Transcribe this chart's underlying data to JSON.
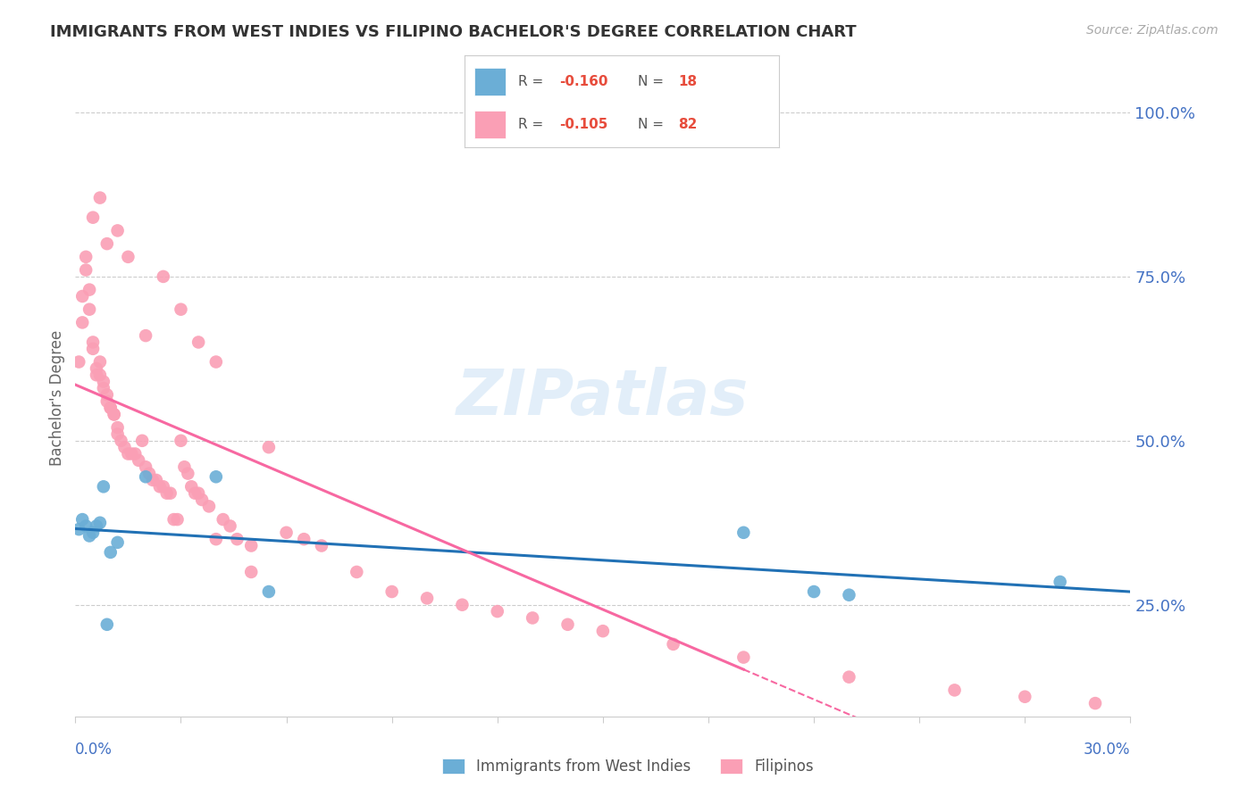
{
  "title": "IMMIGRANTS FROM WEST INDIES VS FILIPINO BACHELOR'S DEGREE CORRELATION CHART",
  "source": "Source: ZipAtlas.com",
  "ylabel": "Bachelor's Degree",
  "legend_label_blue": "Immigrants from West Indies",
  "legend_label_pink": "Filipinos",
  "xmin": 0.0,
  "xmax": 0.3,
  "ymin": 0.08,
  "ymax": 1.05,
  "blue_color": "#6baed6",
  "pink_color": "#fa9fb5",
  "trendline_blue_color": "#2171b5",
  "trendline_pink_color": "#f768a1",
  "blue_scatter_x": [
    0.001,
    0.002,
    0.003,
    0.004,
    0.005,
    0.006,
    0.007,
    0.008,
    0.01,
    0.012,
    0.02,
    0.04,
    0.055,
    0.19,
    0.21,
    0.22,
    0.28,
    0.009
  ],
  "blue_scatter_y": [
    0.365,
    0.38,
    0.37,
    0.355,
    0.36,
    0.37,
    0.375,
    0.43,
    0.33,
    0.345,
    0.445,
    0.445,
    0.27,
    0.36,
    0.27,
    0.265,
    0.285,
    0.22
  ],
  "pink_scatter_x": [
    0.001,
    0.002,
    0.002,
    0.003,
    0.003,
    0.004,
    0.004,
    0.005,
    0.005,
    0.006,
    0.006,
    0.007,
    0.007,
    0.008,
    0.008,
    0.009,
    0.009,
    0.01,
    0.01,
    0.011,
    0.011,
    0.012,
    0.012,
    0.013,
    0.014,
    0.015,
    0.016,
    0.017,
    0.018,
    0.019,
    0.02,
    0.021,
    0.022,
    0.023,
    0.024,
    0.025,
    0.026,
    0.027,
    0.028,
    0.029,
    0.03,
    0.031,
    0.032,
    0.033,
    0.034,
    0.035,
    0.036,
    0.038,
    0.04,
    0.042,
    0.044,
    0.046,
    0.05,
    0.055,
    0.06,
    0.07,
    0.08,
    0.09,
    0.1,
    0.11,
    0.12,
    0.13,
    0.14,
    0.15,
    0.17,
    0.19,
    0.22,
    0.25,
    0.27,
    0.29,
    0.005,
    0.007,
    0.009,
    0.012,
    0.015,
    0.02,
    0.025,
    0.03,
    0.035,
    0.04,
    0.05,
    0.065
  ],
  "pink_scatter_y": [
    0.62,
    0.68,
    0.72,
    0.76,
    0.78,
    0.73,
    0.7,
    0.65,
    0.64,
    0.61,
    0.6,
    0.6,
    0.62,
    0.59,
    0.58,
    0.57,
    0.56,
    0.55,
    0.55,
    0.54,
    0.54,
    0.52,
    0.51,
    0.5,
    0.49,
    0.48,
    0.48,
    0.48,
    0.47,
    0.5,
    0.46,
    0.45,
    0.44,
    0.44,
    0.43,
    0.43,
    0.42,
    0.42,
    0.38,
    0.38,
    0.5,
    0.46,
    0.45,
    0.43,
    0.42,
    0.42,
    0.41,
    0.4,
    0.35,
    0.38,
    0.37,
    0.35,
    0.3,
    0.49,
    0.36,
    0.34,
    0.3,
    0.27,
    0.26,
    0.25,
    0.24,
    0.23,
    0.22,
    0.21,
    0.19,
    0.17,
    0.14,
    0.12,
    0.11,
    0.1,
    0.84,
    0.87,
    0.8,
    0.82,
    0.78,
    0.66,
    0.75,
    0.7,
    0.65,
    0.62,
    0.34,
    0.35
  ],
  "yticks": [
    0.25,
    0.5,
    0.75,
    1.0
  ],
  "ytick_labels": [
    "25.0%",
    "50.0%",
    "75.0%",
    "100.0%"
  ],
  "axis_color": "#4472C4",
  "grid_color": "#cccccc",
  "watermark_color": "#d0e4f5",
  "r_blue": "-0.160",
  "n_blue": "18",
  "r_pink": "-0.105",
  "n_pink": "82",
  "trendline_dash_start": 0.19
}
